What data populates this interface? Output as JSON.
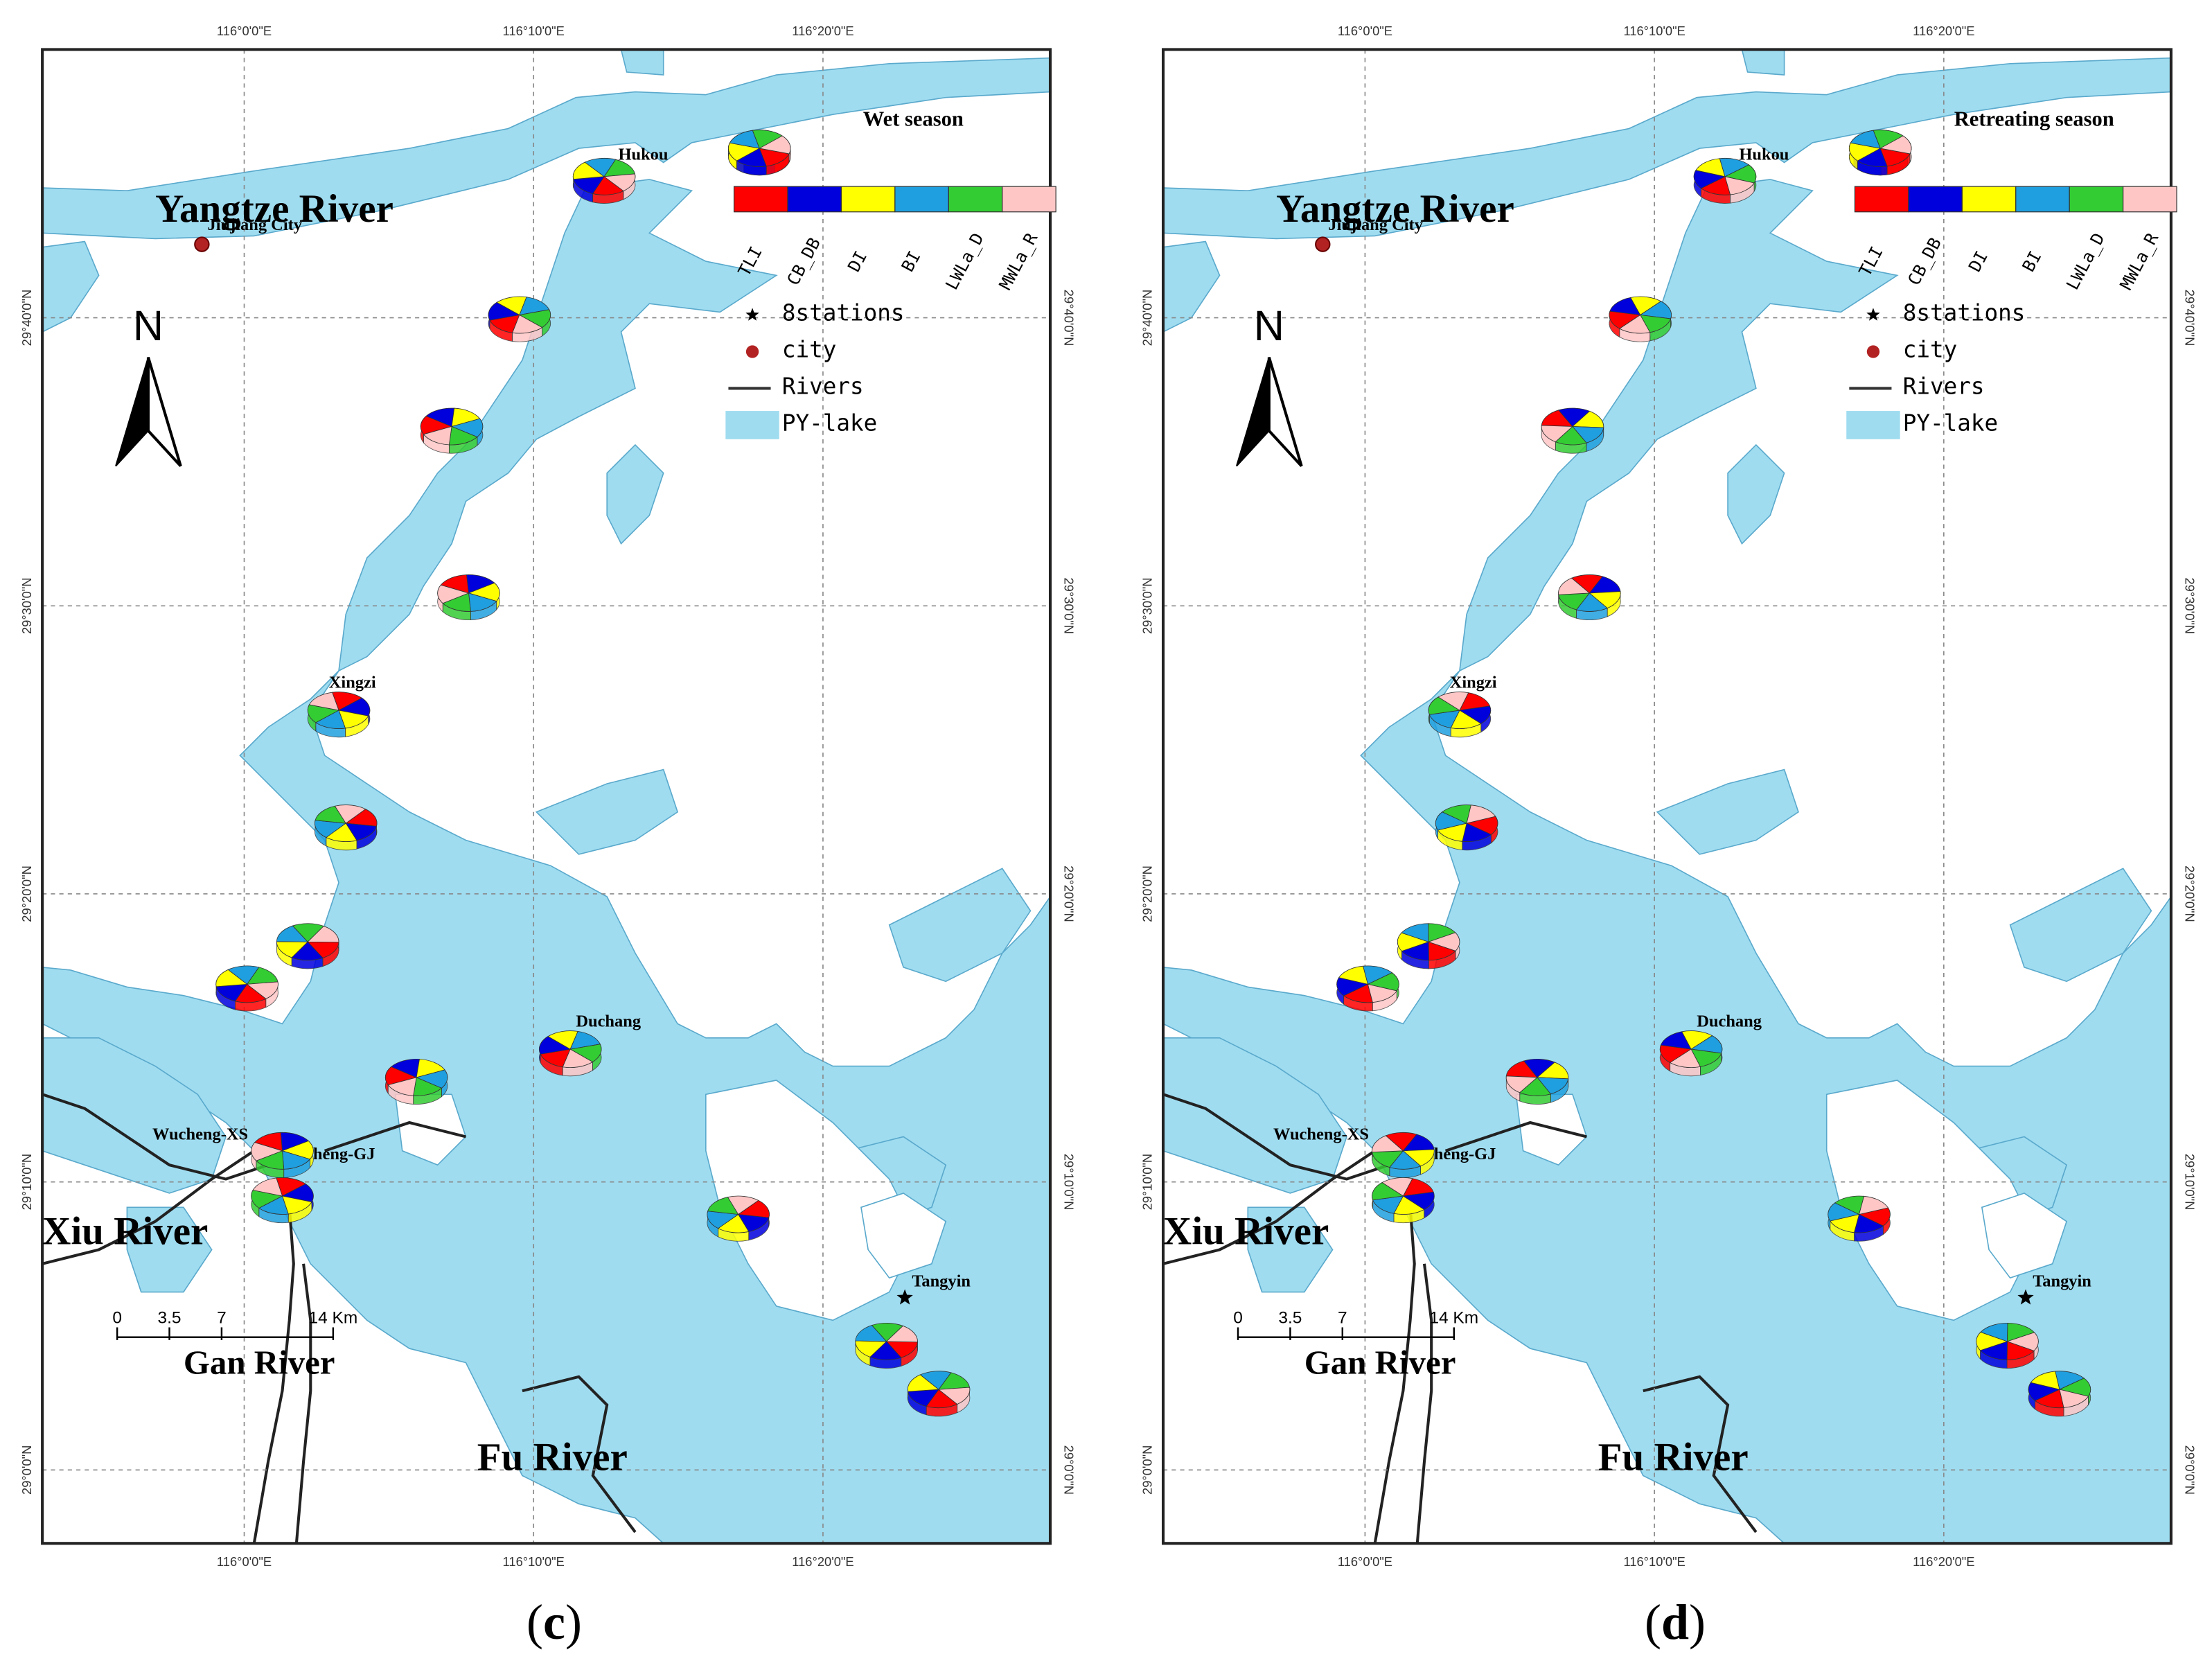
{
  "legend": {
    "pie_categories": [
      "TLI",
      "CB_DB",
      "DI",
      "BI",
      "LWLa_D",
      "MWLa_R"
    ],
    "pie_colors": [
      "#ff0000",
      "#0000dd",
      "#ffff00",
      "#1f9fdf",
      "#33cc33",
      "#ffc6c6"
    ],
    "symbols": [
      {
        "id": "stations",
        "label": "8stations",
        "icon": "star-icon"
      },
      {
        "id": "city",
        "label": "city",
        "icon": "city-dot-icon"
      },
      {
        "id": "rivers",
        "label": "Rivers",
        "icon": "river-line-icon"
      },
      {
        "id": "lake",
        "label": "PY-lake",
        "icon": "lake-swatch-icon"
      }
    ]
  },
  "colors": {
    "water": "#9fdcf0",
    "water_stroke": "#5aa9cc",
    "frame": "#222222",
    "grid": "#888888",
    "city_dot": "#b22222"
  },
  "map_labels": {
    "yangtze": "Yangtze River",
    "jiujiang": "Jiujiang City",
    "hukou": "Hukou",
    "xingzi": "Xingzi",
    "duchang": "Duchang",
    "wucheng_xs": "Wucheng-XS",
    "wucheng_gj": "Wucheng-GJ",
    "tangyin": "Tangyin",
    "xiu": "Xiu River",
    "gan": "Gan River",
    "fu": "Fu River",
    "north": "N"
  },
  "scale_bar": {
    "ticks": [
      "0",
      "3.5",
      "7",
      "14 Km"
    ]
  },
  "graticule": {
    "lon_labels": [
      "116°0'0\"E",
      "116°10'0\"E",
      "116°20'0\"E"
    ],
    "lat_labels": [
      "29°40'0\"N",
      "29°30'0\"N",
      "29°20'0\"N",
      "29°10'0\"N",
      "29°0'0\"N"
    ]
  },
  "panels": [
    {
      "id": "c",
      "season": "Wet season",
      "caption_letter": "c"
    },
    {
      "id": "d",
      "season": "Retreating season",
      "caption_letter": "d"
    }
  ]
}
